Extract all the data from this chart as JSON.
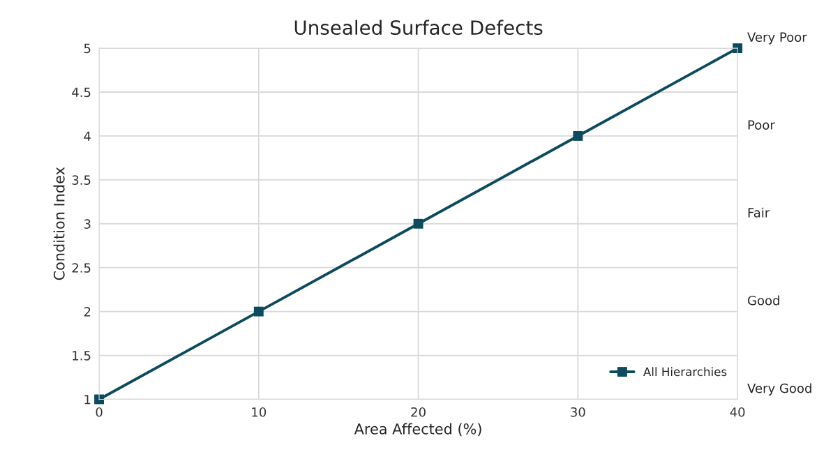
{
  "chart_data": {
    "type": "line",
    "title": "Unsealed Surface Defects",
    "xlabel": "Area Affected (%)",
    "ylabel": "Condition Index",
    "x": [
      0,
      10,
      20,
      30,
      40
    ],
    "series": [
      {
        "name": "All Hierarchies",
        "color": "#0e4a5e",
        "values": [
          1,
          2,
          3,
          4,
          5
        ]
      }
    ],
    "xlim": [
      0,
      40
    ],
    "xticks": [
      0,
      10,
      20,
      30,
      40
    ],
    "ylim": [
      1,
      5
    ],
    "yticks": [
      1,
      1.5,
      2,
      2.5,
      3,
      3.5,
      4,
      4.5,
      5
    ],
    "annotations": [
      "Very Poor",
      "Poor",
      "Fair",
      "Good",
      "Very Good"
    ],
    "grid": true,
    "legend": "bottom right",
    "marker": "square",
    "line_style": "solid"
  }
}
